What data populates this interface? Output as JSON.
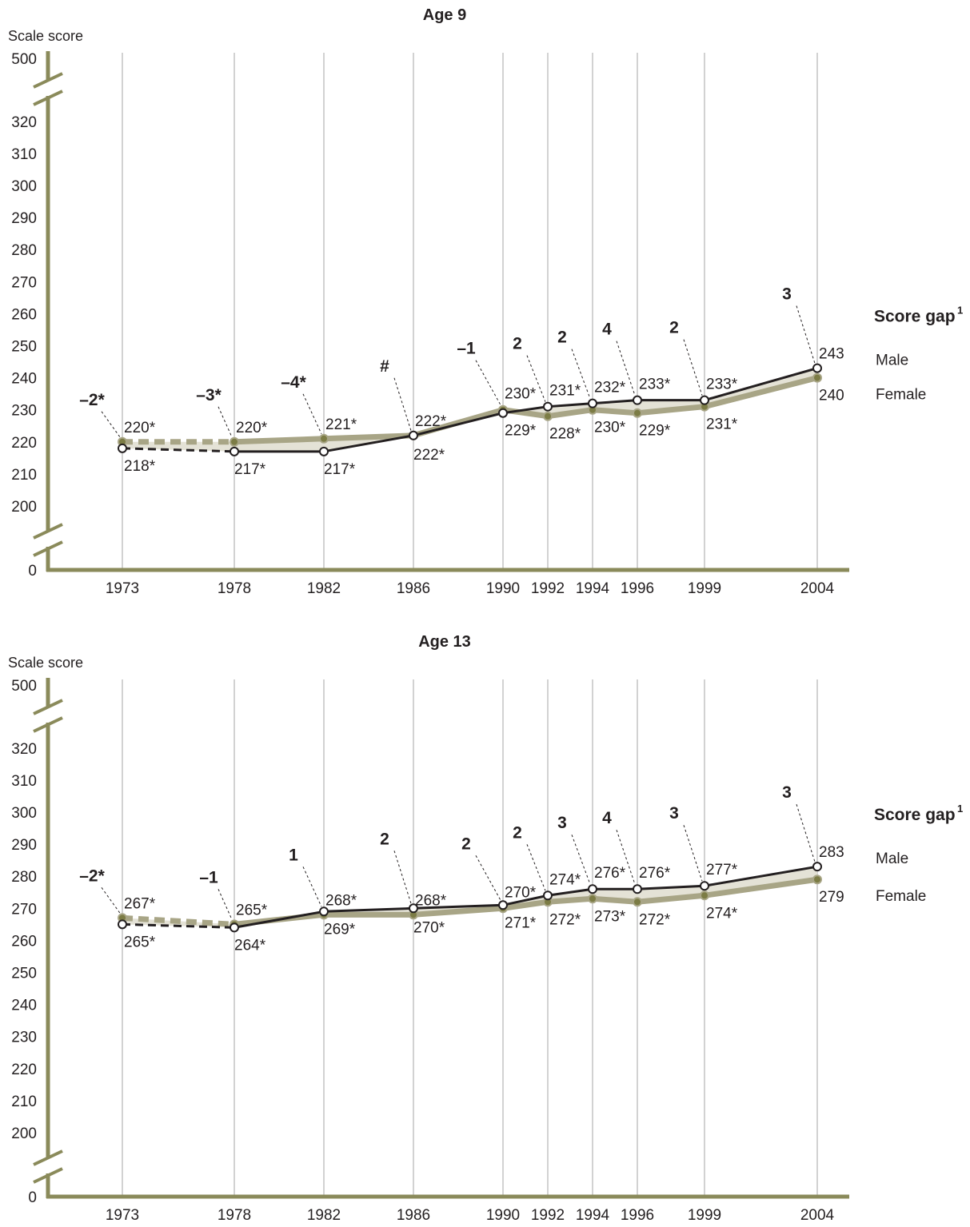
{
  "y_label": "Scale score",
  "y_ticks": [
    "0",
    "200",
    "210",
    "220",
    "230",
    "240",
    "250",
    "260",
    "270",
    "280",
    "290",
    "300",
    "310",
    "320",
    "500"
  ],
  "legend": {
    "score_gap_label": "Score gap",
    "score_gap_footnote": "1",
    "male_label": "Male",
    "female_label": "Female"
  },
  "colors": {
    "male": "#231f20",
    "female": "#a8a586",
    "female_marker": "#7c7c45",
    "axis": "#8a8a5a",
    "band": "#e4e2d6",
    "gridline": "#a6a6a6"
  },
  "chart_data": [
    {
      "type": "line",
      "title": "Age 9",
      "ylabel": "Scale score",
      "x": [
        "1973",
        "1978",
        "1982",
        "1986",
        "1990",
        "1992",
        "1994",
        "1996",
        "1999",
        "2004"
      ],
      "ylim": [
        200,
        320
      ],
      "axis_break": {
        "lower": 0,
        "upper": 500
      },
      "series": [
        {
          "name": "Male",
          "values": [
            218,
            217,
            217,
            222,
            229,
            231,
            232,
            233,
            233,
            243
          ],
          "labels": [
            "218*",
            "217*",
            "217*",
            "222*",
            "229*",
            "231*",
            "232*",
            "233*",
            "233*",
            "243"
          ]
        },
        {
          "name": "Female",
          "values": [
            220,
            220,
            221,
            222,
            230,
            228,
            230,
            229,
            231,
            240
          ],
          "labels": [
            "220*",
            "220*",
            "221*",
            "222*",
            "230*",
            "228*",
            "230*",
            "229*",
            "231*",
            "240"
          ]
        }
      ],
      "score_gaps": [
        "–2*",
        "–3*",
        "–4*",
        "#",
        "–1",
        "2",
        "2",
        "4",
        "2",
        "3"
      ]
    },
    {
      "type": "line",
      "title": "Age 13",
      "ylabel": "Scale score",
      "x": [
        "1973",
        "1978",
        "1982",
        "1986",
        "1990",
        "1992",
        "1994",
        "1996",
        "1999",
        "2004"
      ],
      "ylim": [
        200,
        320
      ],
      "axis_break": {
        "lower": 0,
        "upper": 500
      },
      "series": [
        {
          "name": "Male",
          "values": [
            265,
            264,
            269,
            270,
            271,
            274,
            276,
            276,
            277,
            283
          ],
          "labels": [
            "265*",
            "264*",
            "269*",
            "270*",
            "271*",
            "274*",
            "276*",
            "276*",
            "277*",
            "283"
          ]
        },
        {
          "name": "Female",
          "values": [
            267,
            265,
            268,
            268,
            270,
            272,
            273,
            272,
            274,
            279
          ],
          "labels": [
            "267*",
            "265*",
            "268*",
            "268*",
            "270*",
            "272*",
            "273*",
            "272*",
            "274*",
            "279"
          ]
        }
      ],
      "score_gaps": [
        "–2*",
        "–1",
        "1",
        "2",
        "2",
        "2",
        "3",
        "4",
        "3",
        "3"
      ]
    }
  ]
}
